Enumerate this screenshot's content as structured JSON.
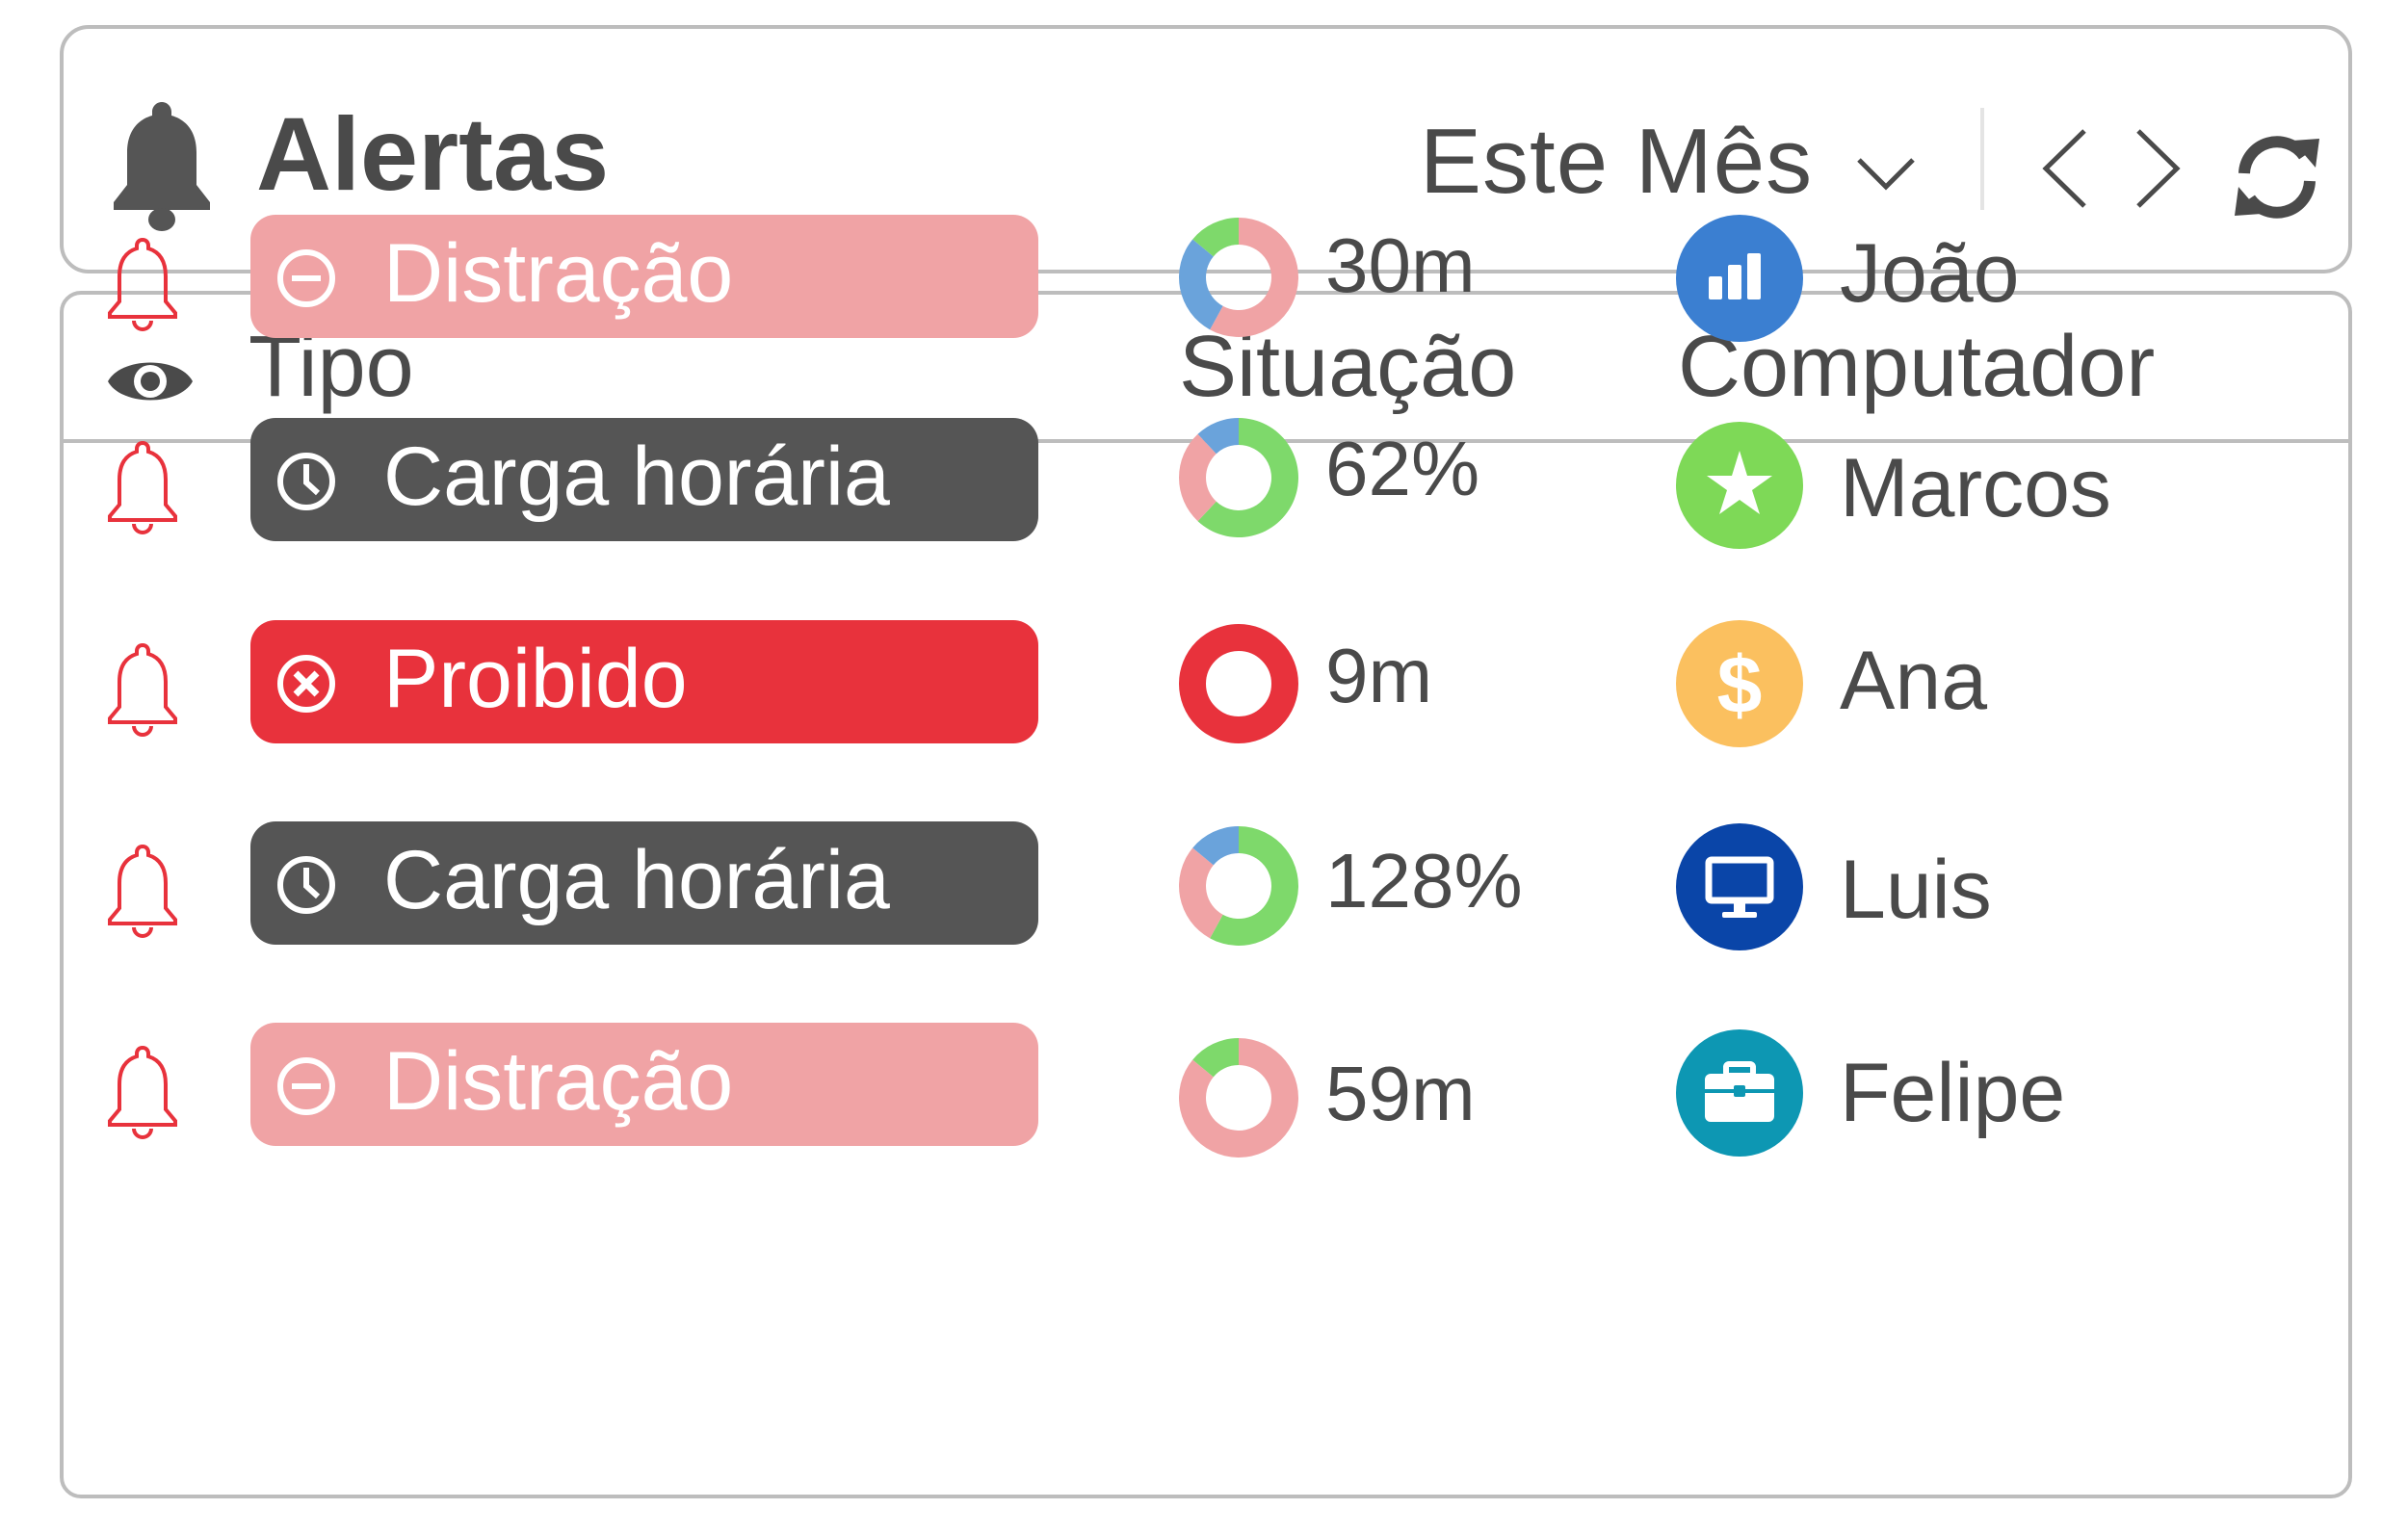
{
  "header": {
    "title": "Alertas",
    "period_label": "Este Mês",
    "icons": [
      "bell-icon",
      "chevron-down-icon",
      "chevron-left-icon",
      "chevron-right-icon",
      "refresh-icon"
    ]
  },
  "table": {
    "columns": {
      "tipo": "Tipo",
      "situacao": "Situação",
      "computador": "Computador"
    },
    "rows": [
      {
        "type": "Distração",
        "type_icon": "minus-circle-icon",
        "type_color": "#f0a3a5",
        "value": "30m",
        "computer": "João",
        "avatar_icon": "chart-bars-icon",
        "avatar_color": "#3b7fd1",
        "donut": [
          {
            "color": "#f0a3a5",
            "fraction": 0.58
          },
          {
            "color": "#6aa3db",
            "fraction": 0.28
          },
          {
            "color": "#7ed96b",
            "fraction": 0.14
          }
        ]
      },
      {
        "type": "Carga horária",
        "type_icon": "clock-icon",
        "type_color": "#555555",
        "value": "62%",
        "computer": "Marcos",
        "avatar_icon": "star-icon",
        "avatar_color": "#7ed957",
        "donut": [
          {
            "color": "#7ed96b",
            "fraction": 0.62
          },
          {
            "color": "#f0a3a5",
            "fraction": 0.26
          },
          {
            "color": "#6aa3db",
            "fraction": 0.12
          }
        ]
      },
      {
        "type": "Proibido",
        "type_icon": "x-circle-icon",
        "type_color": "#e8323c",
        "value": "9m",
        "computer": "Ana",
        "avatar_icon": "dollar-icon",
        "avatar_color": "#fbc05f",
        "donut": [
          {
            "color": "#e8323c",
            "fraction": 1.0
          }
        ]
      },
      {
        "type": "Carga horária",
        "type_icon": "clock-icon",
        "type_color": "#555555",
        "value": "128%",
        "computer": "Luis",
        "avatar_icon": "monitor-icon",
        "avatar_color": "#0a45a8",
        "donut": [
          {
            "color": "#7ed96b",
            "fraction": 0.58
          },
          {
            "color": "#f0a3a5",
            "fraction": 0.28
          },
          {
            "color": "#6aa3db",
            "fraction": 0.14
          }
        ]
      },
      {
        "type": "Distração",
        "type_icon": "minus-circle-icon",
        "type_color": "#f0a3a5",
        "value": "59m",
        "computer": "Felipe",
        "avatar_icon": "briefcase-icon",
        "avatar_color": "#0d97b3",
        "donut": [
          {
            "color": "#f0a3a5",
            "fraction": 0.86
          },
          {
            "color": "#7ed96b",
            "fraction": 0.14
          }
        ]
      }
    ]
  },
  "colors": {
    "border": "#bdbdbd",
    "text": "#4a4a4a",
    "alert_bell": "#e8323c"
  }
}
